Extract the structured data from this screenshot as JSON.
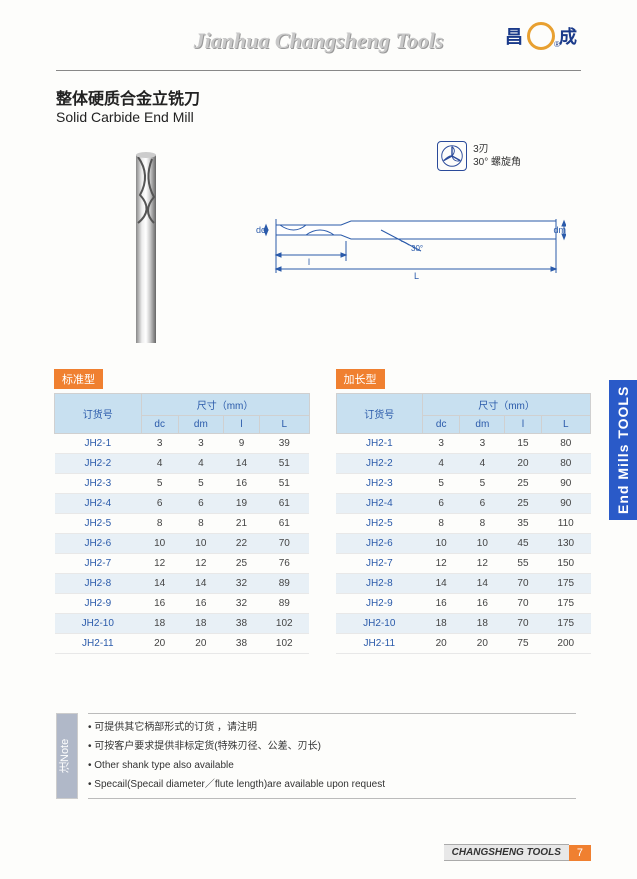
{
  "header": {
    "brand": "Jianhua Changsheng Tools",
    "logo_left": "昌",
    "logo_right": "成"
  },
  "title": {
    "cn": "整体硬质合金立铣刀",
    "en": "Solid Carbide End Mill"
  },
  "flute": {
    "line1": "3刃",
    "line2": "30° 螺旋角"
  },
  "diagram": {
    "dc": "dc",
    "dm": "dm",
    "l": "l",
    "L": "L",
    "angle": "30°",
    "line_color": "#2a5aaa"
  },
  "side_tab": "End Mills TOOLS",
  "tables": {
    "header_bg": "#c8e0f0",
    "header_fg": "#2a5aaa",
    "row_alt_bg": "#e8f0f6",
    "dim_header": "尺寸（mm）",
    "order_header": "订货号",
    "cols": [
      "dc",
      "dm",
      "l",
      "L"
    ],
    "standard": {
      "label": "标准型",
      "rows": [
        [
          "JH2-1",
          "3",
          "3",
          "9",
          "39"
        ],
        [
          "JH2-2",
          "4",
          "4",
          "14",
          "51"
        ],
        [
          "JH2-3",
          "5",
          "5",
          "16",
          "51"
        ],
        [
          "JH2-4",
          "6",
          "6",
          "19",
          "61"
        ],
        [
          "JH2-5",
          "8",
          "8",
          "21",
          "61"
        ],
        [
          "JH2-6",
          "10",
          "10",
          "22",
          "70"
        ],
        [
          "JH2-7",
          "12",
          "12",
          "25",
          "76"
        ],
        [
          "JH2-8",
          "14",
          "14",
          "32",
          "89"
        ],
        [
          "JH2-9",
          "16",
          "16",
          "32",
          "89"
        ],
        [
          "JH2-10",
          "18",
          "18",
          "38",
          "102"
        ],
        [
          "JH2-11",
          "20",
          "20",
          "38",
          "102"
        ]
      ]
    },
    "long": {
      "label": "加长型",
      "rows": [
        [
          "JH2-1",
          "3",
          "3",
          "15",
          "80"
        ],
        [
          "JH2-2",
          "4",
          "4",
          "20",
          "80"
        ],
        [
          "JH2-3",
          "5",
          "5",
          "25",
          "90"
        ],
        [
          "JH2-4",
          "6",
          "6",
          "25",
          "90"
        ],
        [
          "JH2-5",
          "8",
          "8",
          "35",
          "110"
        ],
        [
          "JH2-6",
          "10",
          "10",
          "45",
          "130"
        ],
        [
          "JH2-7",
          "12",
          "12",
          "55",
          "150"
        ],
        [
          "JH2-8",
          "14",
          "14",
          "70",
          "175"
        ],
        [
          "JH2-9",
          "16",
          "16",
          "70",
          "175"
        ],
        [
          "JH2-10",
          "18",
          "18",
          "70",
          "175"
        ],
        [
          "JH2-11",
          "20",
          "20",
          "75",
          "200"
        ]
      ]
    }
  },
  "notes": {
    "tab": "注Note",
    "lines": [
      "可提供其它柄部形式的订货 ，请注明",
      "可按客户要求提供非标定货(特殊刃径、公差、刃长)",
      "Other shank type also available",
      "Specail(Specail diameter／flute length)are available upon request"
    ]
  },
  "footer": {
    "label": "CHANGSHENG TOOLS",
    "page": "7"
  },
  "colors": {
    "accent_orange": "#f08030",
    "accent_blue": "#2a5ac8"
  }
}
